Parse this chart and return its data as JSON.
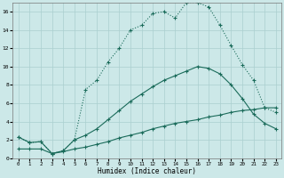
{
  "xlabel": "Humidex (Indice chaleur)",
  "background_color": "#cce8e8",
  "grid_color": "#aacfcf",
  "line_color": "#1a6b5a",
  "xlim": [
    -0.5,
    23.5
  ],
  "ylim": [
    0,
    17
  ],
  "xticks": [
    0,
    1,
    2,
    3,
    4,
    5,
    6,
    7,
    8,
    9,
    10,
    11,
    12,
    13,
    14,
    15,
    16,
    17,
    18,
    19,
    20,
    21,
    22,
    23
  ],
  "yticks": [
    0,
    2,
    4,
    6,
    8,
    10,
    12,
    14,
    16
  ],
  "line1_x": [
    0,
    1,
    2,
    3,
    4,
    5,
    6,
    7,
    8,
    9,
    10,
    11,
    12,
    13,
    14,
    15,
    16,
    17,
    18,
    19,
    20,
    21,
    22,
    23
  ],
  "line1_y": [
    2.3,
    1.7,
    1.8,
    0.5,
    0.8,
    2.0,
    7.5,
    8.5,
    10.5,
    12.0,
    14.0,
    14.5,
    15.8,
    16.0,
    15.3,
    17.0,
    17.0,
    16.5,
    14.5,
    12.3,
    10.2,
    8.5,
    5.5,
    5.0
  ],
  "line2_x": [
    0,
    1,
    2,
    3,
    4,
    5,
    6,
    7,
    8,
    9,
    10,
    11,
    12,
    13,
    14,
    15,
    16,
    17,
    18,
    19,
    20,
    21,
    22,
    23
  ],
  "line2_y": [
    2.3,
    1.7,
    1.8,
    0.5,
    0.8,
    2.0,
    2.5,
    3.2,
    4.2,
    5.2,
    6.2,
    7.0,
    7.8,
    8.5,
    9.0,
    9.5,
    10.0,
    9.8,
    9.2,
    8.0,
    6.5,
    4.8,
    3.8,
    3.2
  ],
  "line3_x": [
    0,
    1,
    2,
    3,
    4,
    5,
    6,
    7,
    8,
    9,
    10,
    11,
    12,
    13,
    14,
    15,
    16,
    17,
    18,
    19,
    20,
    21,
    22,
    23
  ],
  "line3_y": [
    1.0,
    1.0,
    1.0,
    0.5,
    0.7,
    1.0,
    1.2,
    1.5,
    1.8,
    2.2,
    2.5,
    2.8,
    3.2,
    3.5,
    3.8,
    4.0,
    4.2,
    4.5,
    4.7,
    5.0,
    5.2,
    5.3,
    5.5,
    5.5
  ],
  "figsize": [
    3.2,
    2.0
  ],
  "dpi": 100
}
